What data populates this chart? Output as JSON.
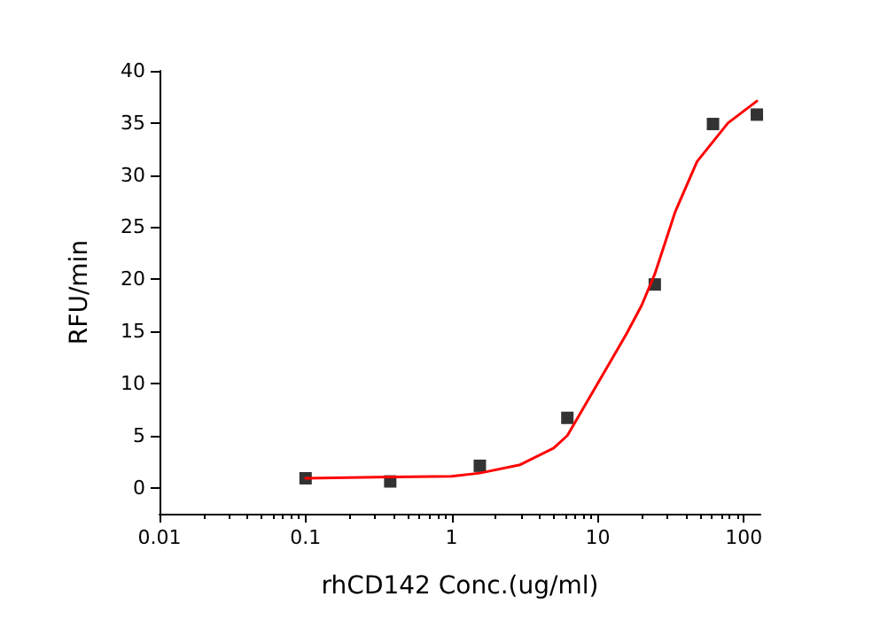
{
  "chart_data": {
    "type": "scatter",
    "xlabel": "rhCD142 Conc.(ug/ml)",
    "ylabel": "RFU/min",
    "log": "x",
    "xlim": [
      0.01,
      130
    ],
    "xticks": [
      0.01,
      0.1,
      1,
      10,
      100
    ],
    "ylim": [
      -2.5,
      40
    ],
    "yticks": [
      0,
      5,
      10,
      15,
      20,
      25,
      30,
      35,
      40
    ],
    "grid": false,
    "series": [
      {
        "color": "#000000",
        "marker": "square",
        "x": [
          0.1,
          0.38,
          1.56,
          6.2,
          24.6,
          61.6,
          123
        ],
        "values": [
          0.9,
          0.6,
          2.1,
          6.7,
          19.5,
          34.9,
          35.8
        ]
      },
      {
        "type": "line",
        "color": "#ff0000",
        "marker": "none",
        "line_style": "solid",
        "x": [
          0.1,
          0.3,
          1,
          1.56,
          2.95,
          5,
          6.2,
          12,
          15.8,
          20,
          24.6,
          34,
          47.9,
          78,
          123
        ],
        "values": [
          0.9,
          1.0,
          1.1,
          1.4,
          2.2,
          3.8,
          5.0,
          11.9,
          14.8,
          17.5,
          20.5,
          26.5,
          31.3,
          35,
          37.1
        ]
      }
    ]
  }
}
